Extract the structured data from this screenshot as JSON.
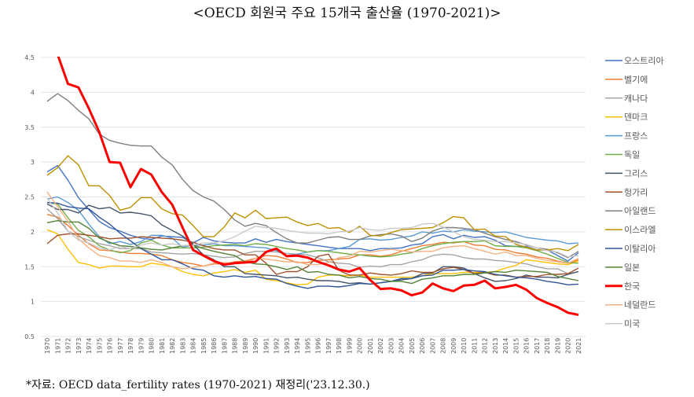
{
  "title": "<OECD 회원국 주요 15개국 출산율 (1970-2021)>",
  "footnote": "*자료: OECD data_fertility rates (1970-2021) 재정리('23.12.30.)",
  "chart_data": {
    "type": "line",
    "title": "<OECD 회원국 주요 15개국 출산율 (1970-2021)>",
    "xlabel": "",
    "ylabel": "",
    "ylim": [
      0.5,
      4.5
    ],
    "yticks": [
      0.5,
      1,
      1.5,
      2,
      2.5,
      3,
      3.5,
      4,
      4.5
    ],
    "grid": true,
    "legend": "right",
    "x": [
      1970,
      1971,
      1972,
      1973,
      1974,
      1975,
      1976,
      1977,
      1978,
      1979,
      1980,
      1981,
      1982,
      1983,
      1984,
      1985,
      1986,
      1987,
      1988,
      1989,
      1990,
      1991,
      1992,
      1993,
      1994,
      1995,
      1996,
      1997,
      1998,
      1999,
      2000,
      2001,
      2002,
      2003,
      2004,
      2005,
      2006,
      2007,
      2008,
      2009,
      2010,
      2011,
      2012,
      2013,
      2014,
      2015,
      2016,
      2017,
      2018,
      2019,
      2020,
      2021
    ],
    "series": [
      {
        "name": "오스트리아",
        "color": "#4472C4",
        "values": [
          2.86,
          2.95,
          2.74,
          2.49,
          2.32,
          2.15,
          2.06,
          2.01,
          1.95,
          1.91,
          1.89,
          1.94,
          1.93,
          1.92,
          1.84,
          1.92,
          1.87,
          1.85,
          1.84,
          1.84,
          1.9,
          1.85,
          1.89,
          1.86,
          1.84,
          1.82,
          1.8,
          1.78,
          1.76,
          1.76,
          1.76,
          1.73,
          1.76,
          1.76,
          1.77,
          1.81,
          1.83,
          1.93,
          1.96,
          1.9,
          1.95,
          1.92,
          1.93,
          1.88,
          1.8,
          1.79,
          1.79,
          1.74,
          1.74,
          1.66,
          1.58,
          1.7
        ]
      },
      {
        "name": "벨기에",
        "color": "#ED7D31",
        "values": [
          2.25,
          2.21,
          2.09,
          1.95,
          1.83,
          1.74,
          1.73,
          1.71,
          1.69,
          1.69,
          1.68,
          1.66,
          1.6,
          1.56,
          1.54,
          1.51,
          1.54,
          1.54,
          1.57,
          1.58,
          1.62,
          1.66,
          1.65,
          1.61,
          1.56,
          1.56,
          1.59,
          1.6,
          1.61,
          1.62,
          1.67,
          1.67,
          1.65,
          1.67,
          1.72,
          1.76,
          1.8,
          1.82,
          1.85,
          1.84,
          1.86,
          1.81,
          1.8,
          1.75,
          1.74,
          1.7,
          1.68,
          1.64,
          1.62,
          1.58,
          1.55,
          1.6
        ]
      },
      {
        "name": "캐나다",
        "color": "#A5A5A5",
        "values": [
          2.33,
          2.19,
          2.01,
          1.93,
          1.88,
          1.83,
          1.8,
          1.76,
          1.76,
          1.76,
          1.71,
          1.7,
          1.69,
          1.68,
          1.69,
          1.67,
          1.65,
          1.63,
          1.64,
          1.69,
          1.72,
          1.72,
          1.71,
          1.69,
          1.68,
          1.67,
          1.63,
          1.57,
          1.55,
          1.54,
          1.49,
          1.51,
          1.5,
          1.53,
          1.53,
          1.57,
          1.6,
          1.66,
          1.68,
          1.67,
          1.63,
          1.61,
          1.61,
          1.59,
          1.58,
          1.56,
          1.54,
          1.5,
          1.47,
          1.47,
          1.4,
          1.43
        ]
      },
      {
        "name": "덴마크",
        "color": "#FFC000",
        "values": [
          2.03,
          1.97,
          1.75,
          1.56,
          1.53,
          1.48,
          1.51,
          1.51,
          1.5,
          1.5,
          1.55,
          1.53,
          1.5,
          1.43,
          1.39,
          1.37,
          1.41,
          1.43,
          1.46,
          1.42,
          1.45,
          1.32,
          1.3,
          1.27,
          1.24,
          1.25,
          1.35,
          1.38,
          1.38,
          1.37,
          1.38,
          1.35,
          1.35,
          1.35,
          1.35,
          1.35,
          1.37,
          1.4,
          1.4,
          1.4,
          1.42,
          1.42,
          1.42,
          1.43,
          1.48,
          1.52,
          1.6,
          1.58,
          1.56,
          1.54,
          1.53,
          1.58
        ]
      },
      {
        "name": "프랑스",
        "color": "#5B9BD5",
        "values": [
          2.47,
          2.5,
          2.42,
          2.31,
          2.11,
          1.93,
          1.83,
          1.86,
          1.82,
          1.86,
          1.95,
          1.95,
          1.91,
          1.78,
          1.81,
          1.81,
          1.83,
          1.8,
          1.8,
          1.79,
          1.78,
          1.77,
          1.73,
          1.66,
          1.68,
          1.71,
          1.73,
          1.73,
          1.76,
          1.79,
          1.89,
          1.9,
          1.88,
          1.89,
          1.92,
          1.94,
          2.0,
          1.98,
          2.01,
          2.0,
          2.03,
          2.01,
          2.0,
          1.99,
          2.0,
          1.96,
          1.92,
          1.9,
          1.88,
          1.87,
          1.83,
          1.84
        ]
      },
      {
        "name": "독일",
        "color": "#70AD47",
        "values": [
          2.42,
          2.4,
          2.2,
          2.02,
          1.93,
          1.8,
          1.74,
          1.7,
          1.73,
          1.84,
          1.88,
          1.81,
          1.77,
          1.77,
          1.77,
          1.78,
          1.8,
          1.81,
          1.82,
          1.8,
          1.83,
          1.82,
          1.79,
          1.76,
          1.74,
          1.71,
          1.73,
          1.72,
          1.7,
          1.68,
          1.67,
          1.65,
          1.64,
          1.65,
          1.68,
          1.7,
          1.76,
          1.8,
          1.83,
          1.85,
          1.86,
          1.86,
          1.87,
          1.8,
          1.79,
          1.79,
          1.77,
          1.73,
          1.68,
          1.62,
          1.56,
          1.55
        ]
      },
      {
        "name": "그리스",
        "color": "#44546A",
        "values": [
          2.4,
          2.32,
          2.32,
          2.27,
          2.38,
          2.33,
          2.35,
          2.27,
          2.28,
          2.26,
          2.23,
          2.1,
          2.02,
          1.94,
          1.82,
          1.67,
          1.6,
          1.5,
          1.5,
          1.4,
          1.39,
          1.38,
          1.37,
          1.34,
          1.35,
          1.32,
          1.3,
          1.3,
          1.29,
          1.26,
          1.27,
          1.25,
          1.27,
          1.29,
          1.31,
          1.33,
          1.4,
          1.41,
          1.5,
          1.5,
          1.48,
          1.4,
          1.34,
          1.29,
          1.3,
          1.33,
          1.38,
          1.35,
          1.35,
          1.34,
          1.39,
          1.43
        ]
      },
      {
        "name": "헝가리",
        "color": "#A0522D",
        "values": [
          1.83,
          1.95,
          1.97,
          1.97,
          1.95,
          1.93,
          1.9,
          1.91,
          1.91,
          1.93,
          1.92,
          1.91,
          1.9,
          1.88,
          1.85,
          1.8,
          1.76,
          1.74,
          1.74,
          1.67,
          1.67,
          1.55,
          1.39,
          1.43,
          1.43,
          1.5,
          1.65,
          1.68,
          1.45,
          1.38,
          1.38,
          1.41,
          1.39,
          1.38,
          1.4,
          1.44,
          1.42,
          1.42,
          1.47,
          1.49,
          1.46,
          1.4,
          1.42,
          1.38,
          1.38,
          1.35,
          1.36,
          1.36,
          1.39,
          1.39,
          1.4,
          1.48
        ]
      },
      {
        "name": "아일랜드",
        "color": "#7F7F7F",
        "values": [
          3.87,
          3.98,
          3.88,
          3.74,
          3.62,
          3.4,
          3.31,
          3.27,
          3.24,
          3.23,
          3.23,
          3.07,
          2.96,
          2.75,
          2.59,
          2.5,
          2.44,
          2.32,
          2.17,
          2.08,
          2.12,
          2.09,
          1.99,
          1.9,
          1.84,
          1.84,
          1.88,
          1.92,
          1.93,
          1.89,
          1.89,
          1.94,
          1.96,
          1.97,
          1.94,
          1.86,
          1.91,
          2.01,
          2.06,
          2.06,
          2.05,
          2.03,
          1.98,
          1.93,
          1.89,
          1.86,
          1.81,
          1.77,
          1.75,
          1.7,
          1.63,
          1.72
        ]
      },
      {
        "name": "이스라엘",
        "color": "#BF9000",
        "values": [
          2.81,
          2.92,
          3.09,
          2.96,
          2.66,
          2.66,
          2.52,
          2.31,
          2.35,
          2.49,
          2.49,
          2.33,
          2.26,
          2.24,
          2.09,
          1.93,
          1.93,
          2.07,
          2.27,
          2.2,
          2.31,
          2.19,
          2.2,
          2.21,
          2.14,
          2.09,
          2.12,
          2.05,
          2.06,
          1.99,
          2.08,
          1.95,
          1.94,
          1.99,
          2.03,
          2.04,
          2.05,
          2.06,
          2.13,
          2.22,
          2.2,
          2.03,
          2.04,
          1.94,
          1.93,
          1.82,
          1.78,
          1.74,
          1.74,
          1.76,
          1.73,
          1.82
        ]
      },
      {
        "name": "이탈리아",
        "color": "#2F5597",
        "values": [
          2.42,
          2.41,
          2.36,
          2.34,
          2.33,
          2.21,
          2.11,
          1.98,
          1.87,
          1.76,
          1.68,
          1.6,
          1.6,
          1.54,
          1.47,
          1.45,
          1.37,
          1.35,
          1.37,
          1.35,
          1.36,
          1.33,
          1.32,
          1.26,
          1.22,
          1.19,
          1.22,
          1.22,
          1.21,
          1.23,
          1.26,
          1.25,
          1.27,
          1.29,
          1.33,
          1.33,
          1.37,
          1.38,
          1.45,
          1.45,
          1.46,
          1.44,
          1.43,
          1.39,
          1.37,
          1.35,
          1.34,
          1.32,
          1.29,
          1.27,
          1.24,
          1.25
        ]
      },
      {
        "name": "일본",
        "color": "#548235",
        "values": [
          2.13,
          2.16,
          2.14,
          2.14,
          2.05,
          1.91,
          1.85,
          1.8,
          1.79,
          1.77,
          1.75,
          1.74,
          1.77,
          1.8,
          1.81,
          1.76,
          1.72,
          1.69,
          1.66,
          1.57,
          1.54,
          1.53,
          1.5,
          1.46,
          1.5,
          1.42,
          1.43,
          1.39,
          1.38,
          1.34,
          1.36,
          1.33,
          1.32,
          1.29,
          1.29,
          1.26,
          1.32,
          1.34,
          1.37,
          1.37,
          1.39,
          1.39,
          1.41,
          1.43,
          1.42,
          1.45,
          1.44,
          1.43,
          1.42,
          1.36,
          1.33,
          1.3
        ]
      },
      {
        "name": "한국",
        "color": "#FF0000",
        "values": [
          4.53,
          4.54,
          4.12,
          4.07,
          3.77,
          3.43,
          3.0,
          2.99,
          2.64,
          2.9,
          2.82,
          2.57,
          2.39,
          2.06,
          1.74,
          1.66,
          1.58,
          1.53,
          1.55,
          1.56,
          1.57,
          1.71,
          1.76,
          1.65,
          1.66,
          1.63,
          1.57,
          1.52,
          1.46,
          1.43,
          1.48,
          1.31,
          1.18,
          1.19,
          1.16,
          1.09,
          1.13,
          1.26,
          1.19,
          1.15,
          1.23,
          1.24,
          1.3,
          1.19,
          1.21,
          1.24,
          1.17,
          1.05,
          0.98,
          0.92,
          0.84,
          0.81
        ]
      },
      {
        "name": "네덜란드",
        "color": "#F4B183",
        "values": [
          2.57,
          2.36,
          2.15,
          1.9,
          1.77,
          1.66,
          1.63,
          1.58,
          1.58,
          1.56,
          1.6,
          1.56,
          1.5,
          1.47,
          1.49,
          1.51,
          1.55,
          1.56,
          1.55,
          1.55,
          1.62,
          1.61,
          1.59,
          1.57,
          1.57,
          1.53,
          1.53,
          1.56,
          1.63,
          1.65,
          1.72,
          1.71,
          1.73,
          1.75,
          1.73,
          1.71,
          1.72,
          1.72,
          1.77,
          1.79,
          1.8,
          1.76,
          1.72,
          1.68,
          1.71,
          1.66,
          1.66,
          1.62,
          1.59,
          1.57,
          1.55,
          1.62
        ]
      },
      {
        "name": "미국",
        "color": "#C9C9C9",
        "values": [
          2.48,
          2.27,
          2.01,
          1.88,
          1.84,
          1.77,
          1.74,
          1.79,
          1.76,
          1.81,
          1.84,
          1.81,
          1.83,
          1.8,
          1.81,
          1.84,
          1.84,
          1.87,
          1.93,
          2.01,
          2.08,
          2.06,
          2.05,
          2.02,
          2.0,
          1.98,
          1.98,
          1.97,
          2.0,
          2.01,
          2.06,
          2.03,
          2.02,
          2.05,
          2.05,
          2.06,
          2.11,
          2.12,
          2.07,
          2.0,
          1.93,
          1.89,
          1.88,
          1.86,
          1.86,
          1.84,
          1.82,
          1.77,
          1.73,
          1.71,
          1.64,
          1.66
        ]
      }
    ]
  }
}
